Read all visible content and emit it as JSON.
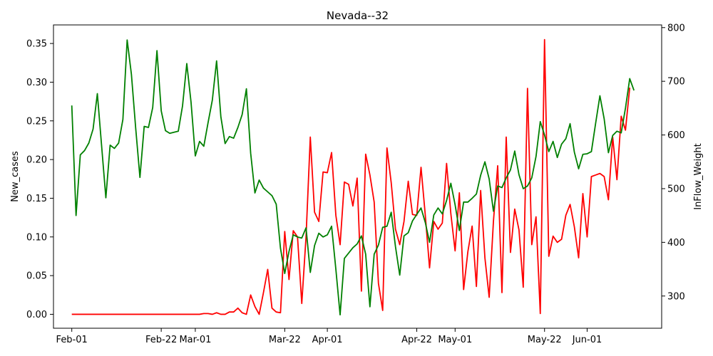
{
  "chart_data": {
    "type": "line",
    "title": "Nevada--32",
    "xlabel": "",
    "ylabel": "New_cases",
    "y2label": "InFlow_Weight",
    "x_tick_labels": [
      "Feb-01",
      "Feb-22",
      "Mar-01",
      "Mar-22",
      "Apr-01",
      "Apr-22",
      "May-01",
      "May-22",
      "Jun-01"
    ],
    "x_tick_days": [
      0,
      21,
      29,
      50,
      60,
      81,
      90,
      111,
      121
    ],
    "xlim": [
      -4.3,
      138.5
    ],
    "ylim": [
      -0.018,
      0.374
    ],
    "y_ticks": [
      0.0,
      0.05,
      0.1,
      0.15,
      0.2,
      0.25,
      0.3,
      0.35
    ],
    "y_tick_labels": [
      "0.00",
      "0.05",
      "0.10",
      "0.15",
      "0.20",
      "0.25",
      "0.30",
      "0.35"
    ],
    "y2lim": [
      240,
      805
    ],
    "y2_ticks": [
      300,
      400,
      500,
      600,
      700,
      800
    ],
    "y2_tick_labels": [
      "300",
      "400",
      "500",
      "600",
      "700",
      "800"
    ],
    "series": [
      {
        "axis": "left",
        "color": "#ff0000",
        "points": [
          [
            0,
            0
          ],
          [
            1,
            0
          ],
          [
            2,
            0
          ],
          [
            3,
            0
          ],
          [
            4,
            0
          ],
          [
            5,
            0
          ],
          [
            6,
            0
          ],
          [
            7,
            0
          ],
          [
            8,
            0
          ],
          [
            9,
            0
          ],
          [
            10,
            0
          ],
          [
            11,
            0
          ],
          [
            12,
            0
          ],
          [
            13,
            0
          ],
          [
            14,
            0
          ],
          [
            15,
            0
          ],
          [
            16,
            0
          ],
          [
            17,
            0
          ],
          [
            18,
            0
          ],
          [
            19,
            0
          ],
          [
            20,
            0
          ],
          [
            21,
            0
          ],
          [
            22,
            0
          ],
          [
            23,
            0
          ],
          [
            24,
            0
          ],
          [
            25,
            0
          ],
          [
            26,
            0
          ],
          [
            27,
            0
          ],
          [
            28,
            0
          ],
          [
            29,
            0
          ],
          [
            30,
            0
          ],
          [
            31,
            0.001
          ],
          [
            32,
            0.001
          ],
          [
            33,
            0
          ],
          [
            34,
            0.002
          ],
          [
            35,
            0
          ],
          [
            36,
            0
          ],
          [
            37,
            0.003
          ],
          [
            38,
            0.003
          ],
          [
            39,
            0.008
          ],
          [
            40,
            0.002
          ],
          [
            41,
            0
          ],
          [
            42,
            0.025
          ],
          [
            43,
            0.01
          ],
          [
            44,
            0
          ],
          [
            45,
            0.028
          ],
          [
            46,
            0.058
          ],
          [
            47,
            0.008
          ],
          [
            48,
            0.003
          ],
          [
            49,
            0.002
          ],
          [
            50,
            0.107
          ],
          [
            51,
            0.045
          ],
          [
            52,
            0.108
          ],
          [
            53,
            0.1
          ],
          [
            54,
            0.014
          ],
          [
            55,
            0.1
          ],
          [
            56,
            0.229
          ],
          [
            57,
            0.132
          ],
          [
            58,
            0.12
          ],
          [
            59,
            0.184
          ],
          [
            60,
            0.183
          ],
          [
            61,
            0.209
          ],
          [
            62,
            0.128
          ],
          [
            63,
            0.09
          ],
          [
            64,
            0.171
          ],
          [
            65,
            0.168
          ],
          [
            66,
            0.14
          ],
          [
            67,
            0.176
          ],
          [
            68,
            0.03
          ],
          [
            69,
            0.207
          ],
          [
            70,
            0.18
          ],
          [
            71,
            0.145
          ],
          [
            72,
            0.04
          ],
          [
            73,
            0.005
          ],
          [
            74,
            0.215
          ],
          [
            75,
            0.17
          ],
          [
            76,
            0.11
          ],
          [
            77,
            0.09
          ],
          [
            78,
            0.12
          ],
          [
            79,
            0.172
          ],
          [
            80,
            0.129
          ],
          [
            81,
            0.128
          ],
          [
            82,
            0.19
          ],
          [
            83,
            0.128
          ],
          [
            84,
            0.06
          ],
          [
            85,
            0.12
          ],
          [
            86,
            0.11
          ],
          [
            87,
            0.118
          ],
          [
            88,
            0.195
          ],
          [
            89,
            0.13
          ],
          [
            90,
            0.082
          ],
          [
            91,
            0.157
          ],
          [
            92,
            0.032
          ],
          [
            93,
            0.081
          ],
          [
            94,
            0.114
          ],
          [
            95,
            0.036
          ],
          [
            96,
            0.16
          ],
          [
            97,
            0.073
          ],
          [
            98,
            0.022
          ],
          [
            99,
            0.12
          ],
          [
            100,
            0.192
          ],
          [
            101,
            0.028
          ],
          [
            102,
            0.229
          ],
          [
            103,
            0.08
          ],
          [
            104,
            0.136
          ],
          [
            105,
            0.109
          ],
          [
            106,
            0.035
          ],
          [
            107,
            0.292
          ],
          [
            108,
            0.09
          ],
          [
            109,
            0.126
          ],
          [
            110,
            0.001
          ],
          [
            111,
            0.355
          ],
          [
            112,
            0.075
          ],
          [
            113,
            0.101
          ],
          [
            114,
            0.093
          ],
          [
            115,
            0.097
          ],
          [
            116,
            0.128
          ],
          [
            117,
            0.142
          ],
          [
            118,
            0.113
          ],
          [
            119,
            0.073
          ],
          [
            120,
            0.156
          ],
          [
            121,
            0.1
          ],
          [
            122,
            0.178
          ],
          [
            123,
            0.18
          ],
          [
            124,
            0.182
          ],
          [
            125,
            0.178
          ],
          [
            126,
            0.148
          ],
          [
            127,
            0.229
          ],
          [
            128,
            0.174
          ],
          [
            129,
            0.256
          ],
          [
            130,
            0.238
          ],
          [
            131,
            0.293
          ]
        ]
      },
      {
        "axis": "right",
        "color": "#008000",
        "points": [
          [
            0,
            655
          ],
          [
            1,
            450
          ],
          [
            2,
            563
          ],
          [
            3,
            571
          ],
          [
            4,
            585
          ],
          [
            5,
            611
          ],
          [
            6,
            677
          ],
          [
            7,
            580
          ],
          [
            8,
            483
          ],
          [
            9,
            581
          ],
          [
            10,
            575
          ],
          [
            11,
            585
          ],
          [
            12,
            629
          ],
          [
            13,
            777
          ],
          [
            14,
            713
          ],
          [
            15,
            613
          ],
          [
            16,
            521
          ],
          [
            17,
            616
          ],
          [
            18,
            614
          ],
          [
            19,
            651
          ],
          [
            20,
            757
          ],
          [
            21,
            645
          ],
          [
            22,
            608
          ],
          [
            23,
            603
          ],
          [
            24,
            605
          ],
          [
            25,
            607
          ],
          [
            26,
            654
          ],
          [
            27,
            733
          ],
          [
            28,
            661
          ],
          [
            29,
            561
          ],
          [
            30,
            588
          ],
          [
            31,
            579
          ],
          [
            32,
            623
          ],
          [
            33,
            665
          ],
          [
            34,
            738
          ],
          [
            35,
            634
          ],
          [
            36,
            584
          ],
          [
            37,
            597
          ],
          [
            38,
            594
          ],
          [
            39,
            614
          ],
          [
            40,
            638
          ],
          [
            41,
            686
          ],
          [
            42,
            566
          ],
          [
            43,
            492
          ],
          [
            44,
            516
          ],
          [
            45,
            501
          ],
          [
            46,
            494
          ],
          [
            47,
            487
          ],
          [
            48,
            471
          ],
          [
            49,
            389
          ],
          [
            50,
            342
          ],
          [
            51,
            383
          ],
          [
            52,
            414
          ],
          [
            53,
            410
          ],
          [
            54,
            408
          ],
          [
            55,
            427
          ],
          [
            56,
            344
          ],
          [
            57,
            394
          ],
          [
            58,
            417
          ],
          [
            59,
            410
          ],
          [
            60,
            414
          ],
          [
            61,
            430
          ],
          [
            62,
            350
          ],
          [
            63,
            265
          ],
          [
            64,
            370
          ],
          [
            65,
            380
          ],
          [
            66,
            390
          ],
          [
            67,
            397
          ],
          [
            68,
            412
          ],
          [
            69,
            378
          ],
          [
            70,
            280
          ],
          [
            71,
            378
          ],
          [
            72,
            395
          ],
          [
            73,
            428
          ],
          [
            74,
            430
          ],
          [
            75,
            456
          ],
          [
            76,
            392
          ],
          [
            77,
            339
          ],
          [
            78,
            412
          ],
          [
            79,
            418
          ],
          [
            80,
            440
          ],
          [
            81,
            452
          ],
          [
            82,
            464
          ],
          [
            83,
            437
          ],
          [
            84,
            400
          ],
          [
            85,
            451
          ],
          [
            86,
            464
          ],
          [
            87,
            453
          ],
          [
            88,
            478
          ],
          [
            89,
            510
          ],
          [
            90,
            470
          ],
          [
            91,
            422
          ],
          [
            92,
            475
          ],
          [
            93,
            475
          ],
          [
            94,
            482
          ],
          [
            95,
            490
          ],
          [
            96,
            525
          ],
          [
            97,
            550
          ],
          [
            98,
            518
          ],
          [
            99,
            458
          ],
          [
            100,
            505
          ],
          [
            101,
            502
          ],
          [
            102,
            520
          ],
          [
            103,
            535
          ],
          [
            104,
            570
          ],
          [
            105,
            526
          ],
          [
            106,
            500
          ],
          [
            107,
            505
          ],
          [
            108,
            520
          ],
          [
            109,
            560
          ],
          [
            110,
            625
          ],
          [
            111,
            600
          ],
          [
            112,
            569
          ],
          [
            113,
            588
          ],
          [
            114,
            558
          ],
          [
            115,
            583
          ],
          [
            116,
            593
          ],
          [
            117,
            621
          ],
          [
            118,
            568
          ],
          [
            119,
            537
          ],
          [
            120,
            564
          ],
          [
            121,
            565
          ],
          [
            122,
            569
          ],
          [
            123,
            622
          ],
          [
            124,
            673
          ],
          [
            125,
            630
          ],
          [
            126,
            567
          ],
          [
            127,
            599
          ],
          [
            128,
            607
          ],
          [
            129,
            604
          ],
          [
            130,
            650
          ],
          [
            131,
            705
          ],
          [
            132,
            683
          ]
        ]
      }
    ]
  }
}
